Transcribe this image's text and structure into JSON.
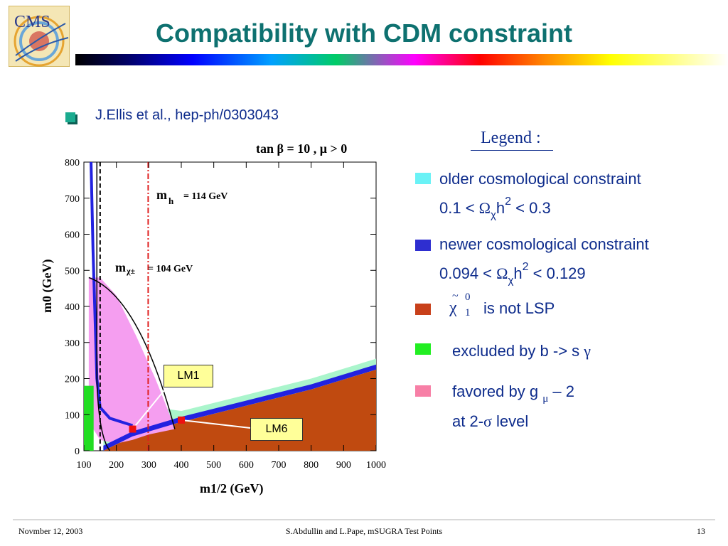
{
  "slide": {
    "title": "Compatibility with CDM constraint",
    "reference": "J.Ellis et al., hep-ph/0303043",
    "logo_text": "CMS"
  },
  "legend": {
    "heading": "Legend :",
    "items": [
      {
        "line1": "older cosmological constraint",
        "line2_pre": "0.1 < ",
        "omega": "Ω",
        "sub": "χ",
        "h": "h",
        "sup": "2",
        "line2_post": " < 0.3",
        "color": "#6af2f6"
      },
      {
        "line1": "newer cosmological constraint",
        "line2_pre": "0.094 < ",
        "omega": "Ω",
        "sub": "χ",
        "h": "h",
        "sup": "2",
        "line2_post": " < 0.129",
        "color": "#2e2ed0"
      },
      {
        "chi": "χ",
        "tilde": "~",
        "sup": "0",
        "sub": "1",
        "text": "is not LSP",
        "color": "#c8401a"
      },
      {
        "text_pre": "excluded by b -> s ",
        "gamma": "γ",
        "color": "#22ee22"
      },
      {
        "line1_pre": "favored by g ",
        "mu": "μ",
        "line1_post": " – 2",
        "line2_pre": "at 2-",
        "sigma": "σ",
        "line2_post": " level",
        "color": "#f77fa6"
      }
    ]
  },
  "footer": {
    "date": "Novmber 12, 2003",
    "center": "S.Abdullin and L.Pape,   mSUGRA Test Points",
    "page": "13"
  },
  "chart_data": {
    "type": "region-plot",
    "title": "tan β = 10 ,  μ > 0",
    "xlabel": "m1/2 (GeV)",
    "ylabel": "m0 (GeV)",
    "xlim": [
      100,
      1000
    ],
    "ylim": [
      0,
      800
    ],
    "xticks": [
      100,
      200,
      300,
      400,
      500,
      600,
      700,
      800,
      900,
      1000
    ],
    "yticks": [
      0,
      100,
      200,
      300,
      400,
      500,
      600,
      700,
      800
    ],
    "annotations": [
      {
        "label": "m_h = 114 GeV",
        "text_main": "m",
        "text_sub": "h",
        "text_rest": "= 114 GeV"
      },
      {
        "label": "m_χ± = 104 GeV",
        "text_main": "m",
        "text_sub": "χ±",
        "text_rest": "= 104 GeV"
      }
    ],
    "points": [
      {
        "name": "LM1",
        "m12": 250,
        "m0": 60
      },
      {
        "name": "LM6",
        "m12": 400,
        "m0": 85
      }
    ],
    "regions": {
      "stau_lsp": {
        "color": "#c04a10",
        "boundary": [
          [
            160,
            0
          ],
          [
            250,
            40
          ],
          [
            400,
            80
          ],
          [
            600,
            125
          ],
          [
            800,
            170
          ],
          [
            1000,
            225
          ]
        ]
      },
      "bsgamma": {
        "color": "#22dd22",
        "m12_max": 130
      },
      "g_minus_2": {
        "color": "#f59ef0",
        "boundary": [
          [
            115,
            480
          ],
          [
            150,
            480
          ],
          [
            200,
            430
          ],
          [
            260,
            320
          ],
          [
            320,
            200
          ],
          [
            360,
            110
          ],
          [
            380,
            60
          ],
          [
            300,
            45
          ],
          [
            250,
            30
          ],
          [
            200,
            20
          ],
          [
            150,
            30
          ],
          [
            115,
            80
          ]
        ]
      },
      "old_cosmo": {
        "color": "#aaf5cc"
      },
      "new_cosmo": {
        "color": "#2222e0"
      }
    },
    "lines": {
      "mh_114": {
        "m12": 298,
        "style": "dash-dot",
        "color": "#e02020"
      },
      "mchi_104": {
        "m12": 150,
        "style": "dashed",
        "color": "#000000"
      }
    }
  }
}
